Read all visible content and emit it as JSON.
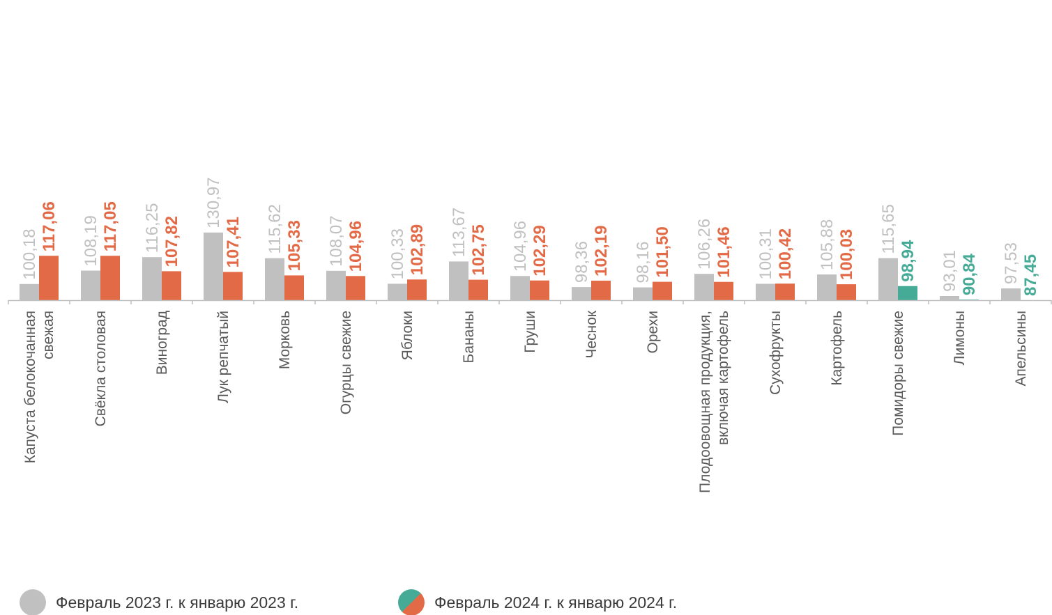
{
  "chart_data": {
    "type": "bar",
    "categories": [
      [
        "Капуста белокочанная",
        "свежая"
      ],
      [
        "Свёкла столовая"
      ],
      [
        "Виноград"
      ],
      [
        "Лук репчатый"
      ],
      [
        "Морковь"
      ],
      [
        "Огурцы свежие"
      ],
      [
        "Яблоки"
      ],
      [
        "Бананы"
      ],
      [
        "Груши"
      ],
      [
        "Чеснок"
      ],
      [
        "Орехи"
      ],
      [
        "Плодоовощная продукция,",
        "включая картофель"
      ],
      [
        "Сухофрукты"
      ],
      [
        "Картофель"
      ],
      [
        "Помидоры свежие"
      ],
      [
        "Лимоны"
      ],
      [
        "Апельсины"
      ]
    ],
    "series": [
      {
        "name": "Февраль 2023 г. к январю 2023 г.",
        "values": [
          100.18,
          108.19,
          116.25,
          130.97,
          115.62,
          108.07,
          100.33,
          113.67,
          104.96,
          98.36,
          98.16,
          106.26,
          100.31,
          105.88,
          115.65,
          93.01,
          97.53
        ],
        "labels": [
          "100,18",
          "108,19",
          "116,25",
          "130,97",
          "115,62",
          "108,07",
          "100,33",
          "113,67",
          "104,96",
          "98,36",
          "98,16",
          "106,26",
          "100,31",
          "105,88",
          "115,65",
          "93,01",
          "97,53"
        ]
      },
      {
        "name": "Февраль 2024 г. к январю 2024 г.",
        "values": [
          117.06,
          117.05,
          107.82,
          107.41,
          105.33,
          104.96,
          102.89,
          102.75,
          102.29,
          102.19,
          101.5,
          101.46,
          100.42,
          100.03,
          98.94,
          90.84,
          87.45
        ],
        "labels": [
          "117,06",
          "117,05",
          "107,82",
          "107,41",
          "105,33",
          "104,96",
          "102,89",
          "102,75",
          "102,29",
          "102,19",
          "101,50",
          "101,46",
          "100,42",
          "100,03",
          "98,94",
          "90,84",
          "87,45"
        ]
      }
    ],
    "colors": {
      "prev": "#c0c0c0",
      "curr_up": "#e36a46",
      "curr_down": "#45ab96",
      "axis": "#bfbfbf"
    },
    "legend_position": "bottom-left",
    "grid": false
  },
  "legend": {
    "items": [
      "Февраль 2023 г. к январю 2023 г.",
      "Февраль 2024 г. к январю 2024 г."
    ]
  }
}
